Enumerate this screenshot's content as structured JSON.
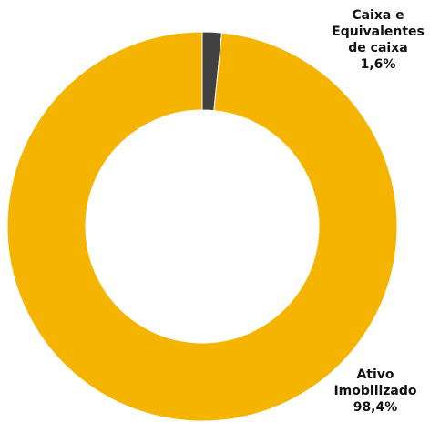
{
  "chart_data": {
    "type": "pie",
    "donut": true,
    "slices": [
      {
        "label_lines": [
          "Caixa e",
          "Equivalentes",
          "de caixa"
        ],
        "percent_text": "1,6%",
        "value": 1.6,
        "color": "#404040"
      },
      {
        "label_lines": [
          "Ativo",
          "Imobilizado"
        ],
        "percent_text": "98,4%",
        "value": 98.4,
        "color": "#F5B400"
      }
    ],
    "legend": "none",
    "title": ""
  }
}
